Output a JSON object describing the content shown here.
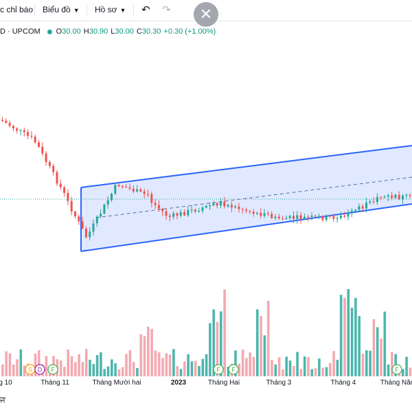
{
  "toolbar": {
    "indicators_label": "c chỉ báo",
    "chart_label": "Biểu đồ",
    "profile_label": "Hồ sơ",
    "undo_icon": "↶",
    "redo_icon": "↷",
    "close_icon": "✕"
  },
  "legend": {
    "symbol": "D · UPCOM",
    "o_label": "O",
    "o_value": "30.00",
    "h_label": "H",
    "h_value": "30.90",
    "l_label": "L",
    "l_value": "30.00",
    "c_label": "C",
    "c_value": "30.30",
    "change": "+0.30 (+1.00%)"
  },
  "x_labels": [
    "g 10",
    "Tháng 11",
    "Tháng Mười hai",
    "2023",
    "Tháng Hai",
    "Tháng 3",
    "Tháng 4",
    "Tháng Năm"
  ],
  "markers": [
    {
      "letter": "S",
      "color": "#f7a600"
    },
    {
      "letter": "D",
      "color": "#9c27b0"
    },
    {
      "letter": "F",
      "color": "#4caf50"
    },
    {
      "letter": "F",
      "color": "#4caf50"
    },
    {
      "letter": "F",
      "color": "#4caf50"
    },
    {
      "letter": "F",
      "color": "#4caf50"
    },
    {
      "letter": "F",
      "color": "#4caf50"
    }
  ],
  "bottom_glyph": "ਜ",
  "colors": {
    "up": "#26a69a",
    "down": "#ef5350",
    "vol_up": "#4db6ac",
    "vol_down": "#f4a9b0",
    "channel_line": "#2962ff",
    "channel_fill": "#dbe5ff"
  }
}
